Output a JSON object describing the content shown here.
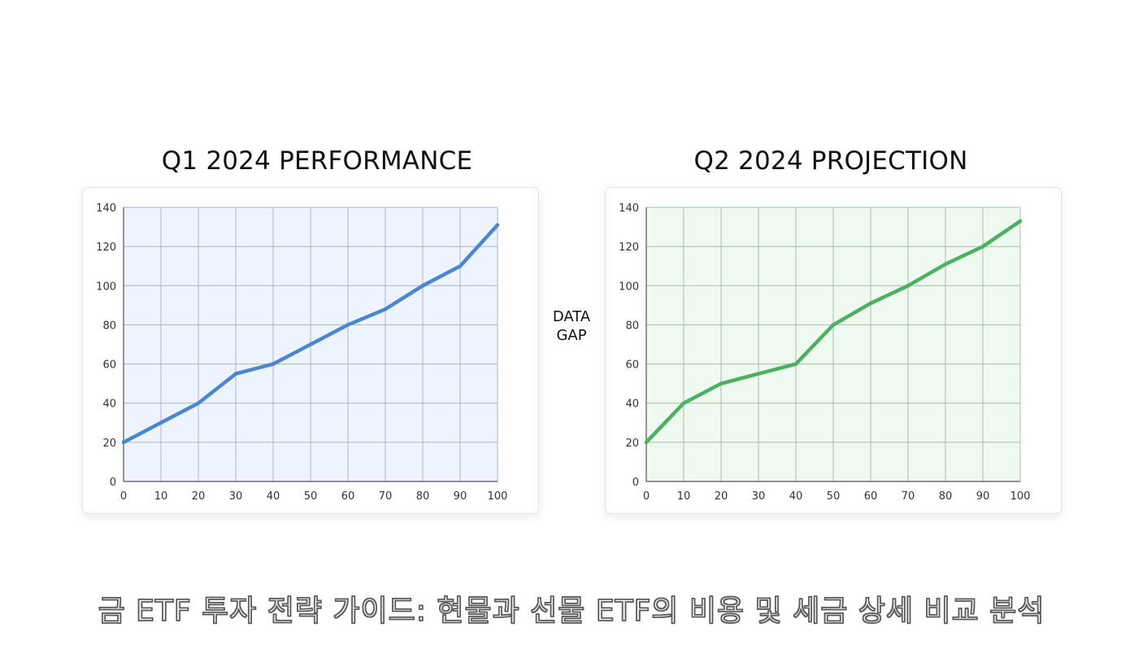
{
  "caption": "금 ETF 투자 전략 가이드: 현물과 선물 ETF의 비용 및 세금 상세 비교 분석",
  "gap_label": {
    "line1": "DATA",
    "line2": "GAP"
  },
  "chart_data": [
    {
      "type": "line",
      "title": "Q1 2024 PERFORMANCE",
      "xlabel": "",
      "ylabel": "",
      "x": [
        0,
        10,
        20,
        30,
        40,
        50,
        60,
        70,
        80,
        90,
        100
      ],
      "series": [
        {
          "values": [
            20,
            30,
            40,
            55,
            60,
            70,
            80,
            88,
            100,
            110,
            131
          ],
          "color": "#4a87d0"
        }
      ],
      "xlim": [
        0,
        100
      ],
      "ylim": [
        0,
        140
      ],
      "xticks": [
        0,
        10,
        20,
        30,
        40,
        50,
        60,
        70,
        80,
        90,
        100
      ],
      "yticks": [
        0,
        20,
        40,
        60,
        80,
        100,
        120,
        140
      ],
      "grid": true,
      "plot_background": "#eef4fd",
      "grid_color": "#aab6c8"
    },
    {
      "type": "line",
      "title": "Q2 2024 PROJECTION",
      "xlabel": "",
      "ylabel": "",
      "x": [
        0,
        10,
        20,
        30,
        40,
        50,
        60,
        70,
        80,
        90,
        100
      ],
      "series": [
        {
          "values": [
            20,
            40,
            50,
            55,
            60,
            80,
            91,
            100,
            111,
            120,
            133
          ],
          "color": "#4cb062"
        }
      ],
      "xlim": [
        0,
        100
      ],
      "ylim": [
        0,
        140
      ],
      "xticks": [
        0,
        10,
        20,
        30,
        40,
        50,
        60,
        70,
        80,
        90,
        100
      ],
      "yticks": [
        0,
        20,
        40,
        60,
        80,
        100,
        120,
        140
      ],
      "grid": true,
      "plot_background": "#eefaef",
      "grid_color": "#a9bea9"
    }
  ]
}
